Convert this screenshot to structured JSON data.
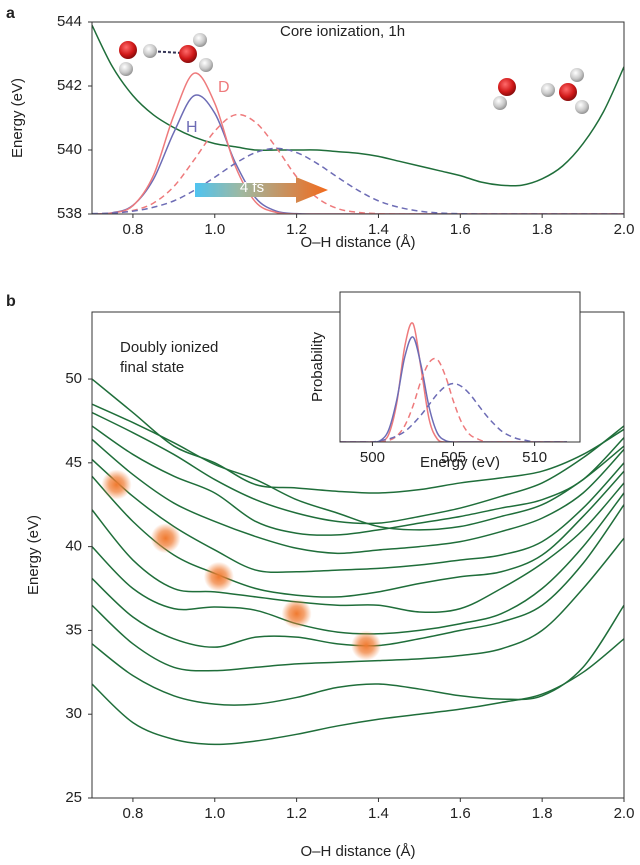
{
  "chart_data": [
    {
      "type": "line",
      "panel_label": "a",
      "annotations": [
        "Core ionization, 1h",
        "D",
        "H",
        "4 fs"
      ],
      "xlabel": "O–H distance (Å)",
      "ylabel": "Energy (eV)",
      "xlim": [
        0.7,
        2.0
      ],
      "ylim": [
        538,
        544
      ],
      "xticks": [
        0.8,
        {
          "value": 1,
          "label": "1.0"
        },
        1.2,
        1.4,
        1.6,
        1.8,
        {
          "value": 2,
          "label": "2.0"
        }
      ],
      "yticks": [
        538,
        540,
        542,
        544
      ],
      "x": [
        0.7,
        0.75,
        0.8,
        0.85,
        0.9,
        0.95,
        1.0,
        1.05,
        1.1,
        1.15,
        1.2,
        1.25,
        1.3,
        1.35,
        1.4,
        1.45,
        1.5,
        1.55,
        1.6,
        1.65,
        1.7,
        1.75,
        1.8,
        1.85,
        1.9,
        1.95,
        2.0
      ],
      "series": [
        {
          "color": "#1f6e3a",
          "dashed": false,
          "values": [
            543.9,
            542.6,
            541.7,
            541.1,
            540.7,
            540.4,
            540.2,
            540.1,
            540.0,
            540.0,
            540.0,
            540.0,
            539.95,
            539.9,
            539.8,
            539.65,
            539.5,
            539.35,
            539.2,
            539.0,
            538.9,
            538.9,
            539.1,
            539.5,
            540.2,
            541.2,
            542.6
          ]
        },
        {
          "color": "#6d6cb5",
          "dashed": false,
          "values": [
            538,
            538.04,
            538.27,
            539.08,
            540.55,
            541.7,
            541.15,
            539.61,
            538.5,
            538.09,
            538.01,
            538,
            538,
            538,
            538,
            538,
            538,
            538,
            538,
            538,
            538,
            538,
            538,
            538,
            538,
            538,
            538
          ]
        },
        {
          "color": "#ee7a7c",
          "dashed": false,
          "values": [
            538,
            538.03,
            538.26,
            539.2,
            541.08,
            542.4,
            541.46,
            539.5,
            538.37,
            538.05,
            538,
            538,
            538,
            538,
            538,
            538,
            538,
            538,
            538,
            538,
            538,
            538,
            538,
            538,
            538,
            538,
            538
          ]
        },
        {
          "color": "#ee7a7c",
          "dashed": true,
          "values": [
            538,
            538.03,
            538.11,
            538.34,
            538.86,
            539.7,
            540.59,
            541.1,
            540.86,
            540.08,
            539.16,
            538.51,
            538.17,
            538.05,
            538.01,
            538,
            538,
            538,
            538,
            538,
            538,
            538,
            538,
            538,
            538,
            538,
            538
          ]
        },
        {
          "color": "#6d6cb5",
          "dashed": true,
          "values": [
            538.01,
            538.03,
            538.09,
            538.21,
            538.41,
            538.74,
            539.15,
            539.58,
            539.92,
            540.05,
            539.92,
            539.58,
            539.15,
            538.74,
            538.41,
            538.21,
            538.09,
            538.03,
            538.01,
            538,
            538,
            538,
            538,
            538,
            538,
            538,
            538
          ]
        }
      ]
    },
    {
      "type": "line",
      "panel_label": "b",
      "annotations": [
        "Doubly ionized",
        "final state"
      ],
      "xlabel": "O–H distance (Å)",
      "ylabel": "Energy (eV)",
      "xlim": [
        0.7,
        2.0
      ],
      "ylim": [
        25,
        54
      ],
      "xticks": [
        0.8,
        {
          "value": 1,
          "label": "1.0"
        },
        1.2,
        1.4,
        1.6,
        1.8,
        {
          "value": 2,
          "label": "2.0"
        }
      ],
      "yticks": [
        25,
        30,
        35,
        40,
        45,
        50
      ],
      "x": [
        0.7,
        0.8,
        0.9,
        1.0,
        1.1,
        1.2,
        1.3,
        1.4,
        1.5,
        1.6,
        1.7,
        1.8,
        1.9,
        2.0
      ],
      "series": [
        {
          "color": "#1f6e3a",
          "values": [
            31.8,
            29.5,
            28.5,
            28.2,
            28.4,
            28.8,
            29.3,
            29.7,
            30.0,
            30.3,
            30.7,
            31.2,
            32.5,
            34.5
          ]
        },
        {
          "color": "#1f6e3a",
          "values": [
            34.2,
            32.3,
            31.1,
            30.6,
            30.6,
            31.0,
            31.6,
            31.8,
            31.5,
            31.1,
            30.9,
            31.1,
            32.8,
            36.5
          ]
        },
        {
          "color": "#1f6e3a",
          "values": [
            36.5,
            34.2,
            32.8,
            32.6,
            32.8,
            33.0,
            33.1,
            33.2,
            33.3,
            33.5,
            33.9,
            35.0,
            37.5,
            40.5
          ]
        },
        {
          "color": "#1f6e3a",
          "values": [
            38.1,
            35.8,
            34.5,
            34.0,
            34.6,
            34.6,
            34.2,
            34.1,
            34.5,
            35.0,
            35.5,
            36.5,
            39.0,
            42.5
          ]
        },
        {
          "color": "#1f6e3a",
          "values": [
            40.0,
            37.5,
            36.3,
            36.4,
            36.2,
            35.4,
            34.9,
            34.8,
            35.0,
            35.4,
            36.0,
            37.5,
            40.0,
            43.2
          ]
        },
        {
          "color": "#1f6e3a",
          "values": [
            42.2,
            39.2,
            37.5,
            37.3,
            37.0,
            36.7,
            36.5,
            36.5,
            36.1,
            36.3,
            37.5,
            39.0,
            41.0,
            43.8
          ]
        },
        {
          "color": "#1f6e3a",
          "values": [
            44.2,
            41.5,
            39.5,
            38.4,
            37.5,
            37.1,
            37.0,
            37.3,
            37.8,
            38.2,
            38.5,
            39.5,
            41.8,
            44.5
          ]
        },
        {
          "color": "#1f6e3a",
          "values": [
            45.2,
            43.0,
            41.2,
            39.8,
            38.6,
            38.5,
            38.6,
            38.7,
            38.9,
            39.2,
            39.5,
            40.3,
            42.3,
            45.0
          ]
        },
        {
          "color": "#1f6e3a",
          "values": [
            46.4,
            44.3,
            42.6,
            41.5,
            40.6,
            39.9,
            39.6,
            39.8,
            40.0,
            40.3,
            40.9,
            41.7,
            43.2,
            45.8
          ]
        },
        {
          "color": "#1f6e3a",
          "values": [
            47.2,
            45.5,
            44.2,
            43.2,
            41.5,
            40.8,
            40.7,
            41.0,
            41.4,
            41.8,
            42.3,
            42.8,
            44.0,
            46.5
          ]
        },
        {
          "color": "#1f6e3a",
          "values": [
            48.0,
            46.8,
            45.5,
            44.0,
            42.8,
            42.0,
            41.5,
            41.4,
            41.8,
            42.3,
            43.0,
            43.8,
            45.3,
            47.2
          ]
        },
        {
          "color": "#1f6e3a",
          "values": [
            48.5,
            47.4,
            46.2,
            44.9,
            44.0,
            42.8,
            42.0,
            41.2,
            41.0,
            41.2,
            41.8,
            42.5,
            44.0,
            46.0
          ]
        },
        {
          "color": "#1f6e3a",
          "values": [
            50.0,
            48.0,
            46.0,
            45.0,
            43.7,
            43.5,
            43.3,
            43.2,
            43.4,
            43.8,
            44.1,
            44.5,
            45.5,
            47.0
          ]
        }
      ],
      "markers": {
        "color": "#f07a30",
        "x": [
          0.76,
          0.88,
          1.01,
          1.2,
          1.37
        ],
        "y": [
          43.7,
          40.5,
          38.2,
          36.0,
          34.1
        ]
      }
    },
    {
      "type": "line",
      "xlabel": "Energy (eV)",
      "ylabel": "Probability",
      "xlim": [
        498,
        512.8
      ],
      "ylim": [
        0,
        1
      ],
      "xticks": [
        500,
        505,
        510
      ],
      "x": [
        498,
        498.5,
        499,
        499.5,
        500,
        500.5,
        501,
        501.5,
        502,
        502.5,
        503,
        503.5,
        504,
        504.5,
        505,
        505.5,
        506,
        506.5,
        507,
        507.5,
        508,
        508.5,
        509,
        509.5,
        510,
        510.5,
        511,
        511.5,
        512
      ],
      "series": [
        {
          "color": "#ee7a7c",
          "dashed": false,
          "values": [
            0,
            0,
            0,
            0,
            0,
            0.004,
            0.05,
            0.26,
            0.64,
            0.79,
            0.49,
            0.15,
            0.02,
            0,
            0,
            0,
            0,
            0,
            0,
            0,
            0,
            0,
            0,
            0,
            0,
            0,
            0,
            0,
            0
          ]
        },
        {
          "color": "#6d6cb5",
          "dashed": false,
          "values": [
            0,
            0,
            0,
            0,
            0,
            0.01,
            0.08,
            0.28,
            0.57,
            0.7,
            0.51,
            0.23,
            0.06,
            0.01,
            0,
            0,
            0,
            0,
            0,
            0,
            0,
            0,
            0,
            0,
            0,
            0,
            0,
            0,
            0
          ]
        },
        {
          "color": "#ee7a7c",
          "dashed": true,
          "values": [
            0,
            0,
            0,
            0,
            0,
            0,
            0.01,
            0.04,
            0.11,
            0.24,
            0.41,
            0.53,
            0.55,
            0.44,
            0.27,
            0.13,
            0.05,
            0.02,
            0,
            0,
            0,
            0,
            0,
            0,
            0,
            0,
            0,
            0,
            0
          ]
        },
        {
          "color": "#6d6cb5",
          "dashed": true,
          "values": [
            0,
            0,
            0,
            0,
            0,
            0.01,
            0.02,
            0.04,
            0.07,
            0.12,
            0.18,
            0.25,
            0.32,
            0.37,
            0.39,
            0.37,
            0.32,
            0.25,
            0.18,
            0.12,
            0.07,
            0.04,
            0.02,
            0.01,
            0,
            0,
            0,
            0,
            0
          ]
        }
      ]
    }
  ]
}
